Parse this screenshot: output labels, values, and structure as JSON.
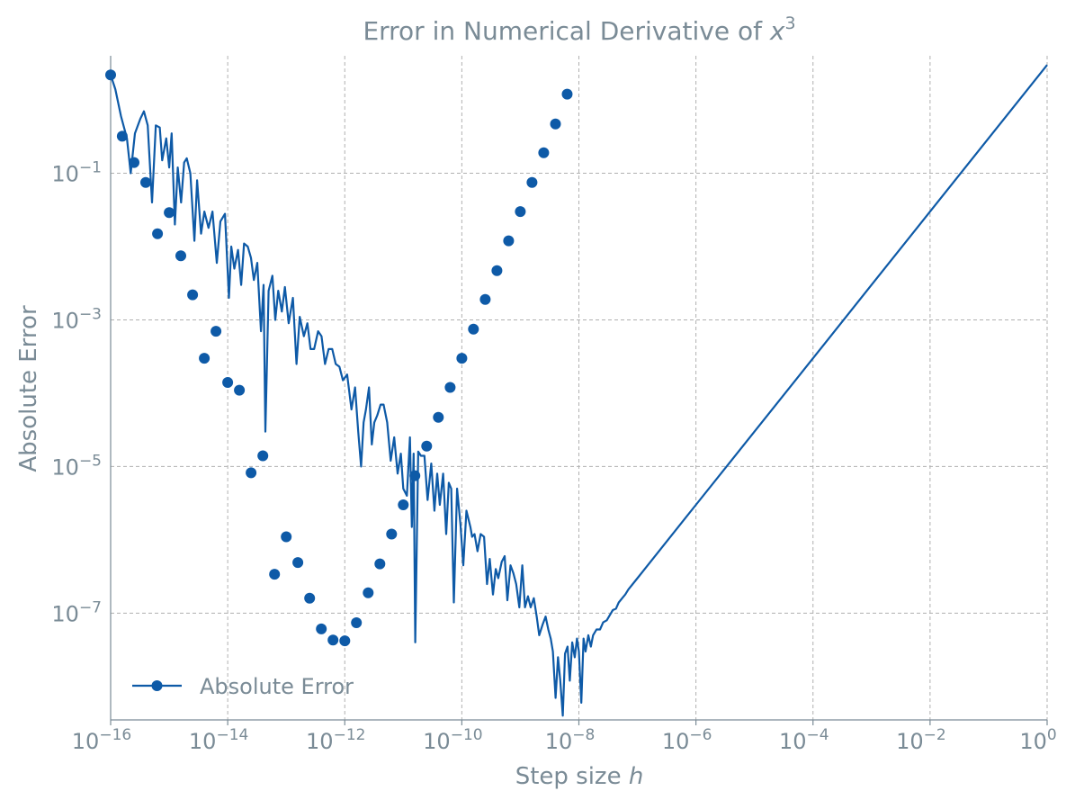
{
  "chart_data": {
    "type": "line",
    "title": "Error in Numerical Derivative of x³",
    "title_main": "Error in Numerical Derivative of ",
    "title_var": "x",
    "title_exp": "3",
    "xlabel_main": "Step size ",
    "xlabel_var": "h",
    "ylabel": "Absolute Error",
    "x_scale": "log",
    "y_scale": "log",
    "xlim": [
      1e-16,
      1
    ],
    "ylim": [
      3.5e-09,
      4
    ],
    "grid": true,
    "legend_position": "lower-left",
    "x_ticks": [
      {
        "base": "10",
        "exp": "−16"
      },
      {
        "base": "10",
        "exp": "−14"
      },
      {
        "base": "10",
        "exp": "−12"
      },
      {
        "base": "10",
        "exp": "−10"
      },
      {
        "base": "10",
        "exp": "−8"
      },
      {
        "base": "10",
        "exp": "−6"
      },
      {
        "base": "10",
        "exp": "−4"
      },
      {
        "base": "10",
        "exp": "−2"
      },
      {
        "base": "10",
        "exp": "0"
      }
    ],
    "x_tick_values": [
      1e-16,
      1e-14,
      1e-12,
      1e-10,
      1e-08,
      1e-06,
      0.0001,
      0.01,
      1
    ],
    "y_ticks": [
      {
        "base": "10",
        "exp": "−1"
      },
      {
        "base": "10",
        "exp": "−3"
      },
      {
        "base": "10",
        "exp": "−5"
      },
      {
        "base": "10",
        "exp": "−7"
      }
    ],
    "y_tick_values": [
      0.1,
      0.001,
      1e-05,
      1e-07
    ],
    "series": [
      {
        "name": "Absolute Error",
        "color": "#0e5aa7",
        "line_points": [
          [
            1e-16,
            2.2
          ],
          [
            1.2e-16,
            1.4
          ],
          [
            1.5e-16,
            0.6
          ],
          [
            1.9e-16,
            0.3
          ],
          [
            2.2e-16,
            0.1
          ],
          [
            2.6e-16,
            0.35
          ],
          [
            3.2e-16,
            0.55
          ],
          [
            3.7e-16,
            0.7
          ],
          [
            4.3e-16,
            0.45
          ],
          [
            5.1e-16,
            0.04
          ],
          [
            5.9e-16,
            0.45
          ],
          [
            6.9e-16,
            0.42
          ],
          [
            7.6e-16,
            0.15
          ],
          [
            8.9e-16,
            0.3
          ],
          [
            1e-15,
            0.12
          ],
          [
            1.1e-15,
            0.35
          ],
          [
            1.25e-15,
            0.02
          ],
          [
            1.4e-15,
            0.12
          ],
          [
            1.6e-15,
            0.04
          ],
          [
            1.8e-15,
            0.14
          ],
          [
            2e-15,
            0.16
          ],
          [
            2.3e-15,
            0.1
          ],
          [
            2.7e-15,
            0.012
          ],
          [
            3e-15,
            0.08
          ],
          [
            3.5e-15,
            0.015
          ],
          [
            4e-15,
            0.03
          ],
          [
            4.7e-15,
            0.018
          ],
          [
            5.5e-15,
            0.03
          ],
          [
            6.5e-15,
            0.006
          ],
          [
            7.5e-15,
            0.022
          ],
          [
            9e-15,
            0.028
          ],
          [
            1.05e-14,
            0.002
          ],
          [
            1.15e-14,
            0.01
          ],
          [
            1.3e-14,
            0.005
          ],
          [
            1.5e-14,
            0.009
          ],
          [
            1.7e-14,
            0.003
          ],
          [
            1.9e-14,
            0.011
          ],
          [
            2.2e-14,
            0.01
          ],
          [
            2.5e-14,
            0.007
          ],
          [
            2.8e-14,
            0.0035
          ],
          [
            3.2e-14,
            0.006
          ],
          [
            3.7e-14,
            0.0007
          ],
          [
            4.1e-14,
            0.003
          ],
          [
            4.4e-14,
            3e-05
          ],
          [
            5e-14,
            0.0025
          ],
          [
            5.8e-14,
            0.004
          ],
          [
            6.5e-14,
            0.001
          ],
          [
            7.3e-14,
            0.0025
          ],
          [
            8.4e-14,
            0.0013
          ],
          [
            9.5e-14,
            0.0028
          ],
          [
            1.1e-13,
            0.0009
          ],
          [
            1.3e-13,
            0.002
          ],
          [
            1.5e-13,
            0.00025
          ],
          [
            1.7e-13,
            0.0011
          ],
          [
            2e-13,
            0.0006
          ],
          [
            2.3e-13,
            0.0009
          ],
          [
            2.6e-13,
            0.0004
          ],
          [
            3e-13,
            0.0004
          ],
          [
            3.5e-13,
            0.0007
          ],
          [
            4e-13,
            0.0006
          ],
          [
            4.6e-13,
            0.00025
          ],
          [
            5.3e-13,
            0.0004
          ],
          [
            6.1e-13,
            0.0004
          ],
          [
            7e-13,
            0.00025
          ],
          [
            8.1e-13,
            0.00023
          ],
          [
            9.3e-13,
            0.00015
          ],
          [
            1.1e-12,
            0.00018
          ],
          [
            1.3e-12,
            6e-05
          ],
          [
            1.5e-12,
            0.00012
          ],
          [
            1.7e-12,
            3e-05
          ],
          [
            1.9e-12,
            1e-05
          ],
          [
            2.1e-12,
            4e-05
          ],
          [
            2.3e-12,
            6e-05
          ],
          [
            2.6e-12,
            0.00012
          ],
          [
            2.9e-12,
            2e-05
          ],
          [
            3.2e-12,
            4e-05
          ],
          [
            3.6e-12,
            5e-05
          ],
          [
            4.1e-12,
            7e-05
          ],
          [
            4.6e-12,
            7e-05
          ],
          [
            5.3e-12,
            4e-05
          ],
          [
            6.1e-12,
            1.2e-05
          ],
          [
            7e-12,
            2.5e-05
          ],
          [
            8e-12,
            8e-06
          ],
          [
            9.1e-12,
            1.5e-05
          ],
          [
            1e-11,
            5e-06
          ],
          [
            1.15e-11,
            4e-06
          ],
          [
            1.3e-11,
            2.5e-05
          ],
          [
            1.4e-11,
            1.5e-06
          ],
          [
            1.5e-11,
            1.5e-05
          ],
          [
            1.6e-11,
            4e-08
          ],
          [
            1.8e-11,
            1.6e-05
          ],
          [
            2e-11,
            1.4e-05
          ],
          [
            2.3e-11,
            1.4e-05
          ],
          [
            2.6e-11,
            3.5e-06
          ],
          [
            3e-11,
            1.1e-05
          ],
          [
            3.4e-11,
            2.5e-06
          ],
          [
            3.8e-11,
            8e-06
          ],
          [
            4.2e-11,
            3e-06
          ],
          [
            4.8e-11,
            8e-06
          ],
          [
            5.4e-11,
            1.2e-06
          ],
          [
            6e-11,
            6e-06
          ],
          [
            6.6e-11,
            5e-06
          ],
          [
            7.3e-11,
            1.4e-07
          ],
          [
            8.3e-11,
            5e-06
          ],
          [
            9.5e-11,
            1.6e-06
          ],
          [
            1.06e-10,
            4.5e-07
          ],
          [
            1.2e-10,
            2.5e-06
          ],
          [
            1.4e-10,
            1.5e-06
          ],
          [
            1.5e-10,
            1.1e-06
          ],
          [
            1.65e-10,
            1.2e-06
          ],
          [
            1.85e-10,
            7e-07
          ],
          [
            2.1e-10,
            1.2e-06
          ],
          [
            2.4e-10,
            1.1e-06
          ],
          [
            2.7e-10,
            2.5e-07
          ],
          [
            3e-10,
            5.5e-07
          ],
          [
            3.4e-10,
            1.8e-07
          ],
          [
            3.8e-10,
            4e-07
          ],
          [
            4.2e-10,
            3e-07
          ],
          [
            4.8e-10,
            5e-07
          ],
          [
            5.4e-10,
            6e-07
          ],
          [
            6e-10,
            1.5e-07
          ],
          [
            6.8e-10,
            4.5e-07
          ],
          [
            7.6e-10,
            3.5e-07
          ],
          [
            8.5e-10,
            2.5e-07
          ],
          [
            9.6e-10,
            1.2e-07
          ],
          [
            1.08e-09,
            4.5e-07
          ],
          [
            1.2e-09,
            1.2e-07
          ],
          [
            1.35e-09,
            1.7e-07
          ],
          [
            1.5e-09,
            1.2e-07
          ],
          [
            1.7e-09,
            1.6e-07
          ],
          [
            1.9e-09,
            9e-08
          ],
          [
            2.1e-09,
            5e-08
          ],
          [
            2.4e-09,
            7e-08
          ],
          [
            2.7e-09,
            9e-08
          ],
          [
            3e-09,
            6e-08
          ],
          [
            3.3e-09,
            4.5e-08
          ],
          [
            3.6e-09,
            3e-08
          ],
          [
            4e-09,
            7e-09
          ],
          [
            4.4e-09,
            2.5e-08
          ],
          [
            4.8e-09,
            1.2e-08
          ],
          [
            5.3e-09,
            4e-09
          ],
          [
            5.8e-09,
            2.8e-08
          ],
          [
            6.4e-09,
            3.5e-08
          ],
          [
            7e-09,
            1.2e-08
          ],
          [
            7.7e-09,
            4e-08
          ],
          [
            8.5e-09,
            2.5e-08
          ],
          [
            9.3e-09,
            4.5e-08
          ],
          [
            1e-08,
            3e-08
          ],
          [
            1.1e-08,
            6e-09
          ],
          [
            1.2e-08,
            4.5e-08
          ],
          [
            1.3e-08,
            3e-08
          ],
          [
            1.45e-08,
            5e-08
          ],
          [
            1.6e-08,
            3.5e-08
          ],
          [
            1.75e-08,
            5e-08
          ],
          [
            2e-08,
            6e-08
          ],
          [
            2.3e-08,
            6e-08
          ],
          [
            2.6e-08,
            7.5e-08
          ],
          [
            3e-08,
            8e-08
          ],
          [
            3.4e-08,
            9.5e-08
          ],
          [
            3.8e-08,
            1.1e-07
          ],
          [
            4.3e-08,
            1.15e-07
          ],
          [
            4.8e-08,
            1.4e-07
          ],
          [
            5.5e-08,
            1.6e-07
          ],
          [
            6.2e-08,
            1.8e-07
          ],
          [
            7e-08,
            2.1e-07
          ],
          [
            1e-07,
            3e-07
          ],
          [
            1e-06,
            3e-06
          ],
          [
            1e-05,
            3e-05
          ],
          [
            0.0001,
            0.0003
          ],
          [
            0.001,
            0.003
          ],
          [
            0.01,
            0.03
          ],
          [
            0.1,
            0.3
          ],
          [
            1,
            3
          ]
        ],
        "markers": [
          [
            1e-16,
            2.2
          ],
          [
            1.58e-16,
            0.32
          ],
          [
            2.51e-16,
            0.14
          ],
          [
            3.98e-16,
            0.075
          ],
          [
            6.31e-16,
            0.015
          ],
          [
            1e-15,
            0.029
          ],
          [
            1.58e-15,
            0.0075
          ],
          [
            2.51e-15,
            0.0022
          ],
          [
            3.98e-15,
            0.0003
          ],
          [
            6.31e-15,
            0.0007
          ],
          [
            1e-14,
            0.00014
          ],
          [
            1.58e-14,
            0.00011
          ],
          [
            2.51e-14,
            8.2e-06
          ],
          [
            3.98e-14,
            1.4e-05
          ],
          [
            6.31e-14,
            3.4e-07
          ],
          [
            1e-13,
            1.1e-06
          ],
          [
            1.58e-13,
            4.9e-07
          ],
          [
            2.51e-13,
            1.6e-07
          ],
          [
            3.98e-13,
            6.1e-08
          ],
          [
            6.31e-13,
            4.3e-08
          ],
          [
            1e-12,
            4.2e-08
          ],
          [
            1.58e-12,
            7.4e-08
          ],
          [
            2.51e-12,
            1.9e-07
          ],
          [
            3.98e-12,
            4.7e-07
          ],
          [
            6.31e-12,
            1.2e-06
          ],
          [
            1e-11,
            3e-06
          ],
          [
            1.58e-11,
            7.5e-06
          ],
          [
            2.51e-11,
            1.9e-05
          ],
          [
            3.98e-11,
            4.7e-05
          ],
          [
            6.31e-11,
            0.00012
          ],
          [
            1e-10,
            0.0003
          ],
          [
            1.58e-10,
            0.00075
          ],
          [
            2.51e-10,
            0.0019
          ],
          [
            3.98e-10,
            0.0047
          ],
          [
            6.31e-10,
            0.012
          ],
          [
            1e-09,
            0.03
          ],
          [
            1.58e-09,
            0.075
          ],
          [
            2.51e-09,
            0.19
          ],
          [
            3.98e-09,
            0.47
          ],
          [
            6.31e-09,
            1.2
          ]
        ]
      }
    ]
  },
  "legend": {
    "label": "Absolute Error"
  }
}
